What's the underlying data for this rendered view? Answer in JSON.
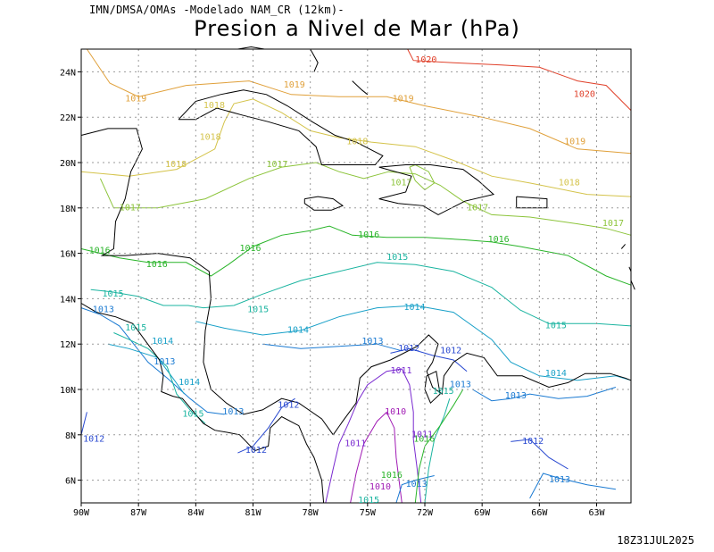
{
  "header": {
    "source_line": "IMN/DMSA/OMAs -Modelado NAM_CR (12km)-",
    "title": "Presion a Nivel de Mar (hPa)"
  },
  "footer": {
    "valid_time": "18Z31JUL2025"
  },
  "axes": {
    "lon_ticks": [
      "90W",
      "87W",
      "84W",
      "81W",
      "78W",
      "75W",
      "72W",
      "69W",
      "66W",
      "63W"
    ],
    "lat_ticks": [
      "24N",
      "22N",
      "20N",
      "18N",
      "16N",
      "14N",
      "12N",
      "10N",
      "8N",
      "6N"
    ],
    "lon_range_deg": [
      -90,
      -61.2
    ],
    "lat_range_deg": [
      5,
      25
    ],
    "grid": true
  },
  "colors": {
    "1020": "#e0402a",
    "1019": "#e0a03a",
    "1018": "#d4c34a",
    "1017": "#8cc43a",
    "1016": "#28b428",
    "1015": "#1ab4a0",
    "1014": "#18a0c8",
    "1013": "#1a7ad2",
    "1012": "#2848d0",
    "1011": "#7a2ad0",
    "1010": "#a01ab4",
    "coast": "#000000",
    "grid": "#9a9a9a"
  },
  "contour_labels": [
    {
      "text": "1020",
      "lon": -72.5,
      "lat": 24.4,
      "level": "1020"
    },
    {
      "text": "1020",
      "lon": -64.2,
      "lat": 22.9,
      "level": "1020"
    },
    {
      "text": "1019",
      "lon": -87.7,
      "lat": 22.7,
      "level": "1019"
    },
    {
      "text": "1019",
      "lon": -79.4,
      "lat": 23.3,
      "level": "1019"
    },
    {
      "text": "1019",
      "lon": -73.7,
      "lat": 22.7,
      "level": "1019"
    },
    {
      "text": "1019",
      "lon": -64.7,
      "lat": 20.8,
      "level": "1019"
    },
    {
      "text": "1018",
      "lon": -83.6,
      "lat": 22.4,
      "level": "1018"
    },
    {
      "text": "1018",
      "lon": -83.8,
      "lat": 21.0,
      "level": "1018"
    },
    {
      "text": "1018",
      "lon": -85.6,
      "lat": 19.8,
      "level": "1018"
    },
    {
      "text": "1018",
      "lon": -76.1,
      "lat": 20.8,
      "level": "1018"
    },
    {
      "text": "1018",
      "lon": -65.0,
      "lat": 19.0,
      "level": "1018"
    },
    {
      "text": "1017",
      "lon": -88.0,
      "lat": 17.9,
      "level": "1017"
    },
    {
      "text": "1017",
      "lon": -80.3,
      "lat": 19.8,
      "level": "1017"
    },
    {
      "text": "1017",
      "lon": -73.8,
      "lat": 19.0,
      "level": "1017"
    },
    {
      "text": "1017",
      "lon": -69.8,
      "lat": 17.9,
      "level": "1017"
    },
    {
      "text": "1017",
      "lon": -62.7,
      "lat": 17.2,
      "level": "1017"
    },
    {
      "text": "1016",
      "lon": -89.6,
      "lat": 16.0,
      "level": "1016"
    },
    {
      "text": "1016",
      "lon": -86.6,
      "lat": 15.4,
      "level": "1016"
    },
    {
      "text": "1016",
      "lon": -81.7,
      "lat": 16.1,
      "level": "1016"
    },
    {
      "text": "1016",
      "lon": -75.5,
      "lat": 16.7,
      "level": "1016"
    },
    {
      "text": "1016",
      "lon": -68.7,
      "lat": 16.5,
      "level": "1016"
    },
    {
      "text": "1016",
      "lon": -72.6,
      "lat": 7.7,
      "level": "1016"
    },
    {
      "text": "1016",
      "lon": -74.3,
      "lat": 6.1,
      "level": "1016"
    },
    {
      "text": "1015",
      "lon": -88.9,
      "lat": 14.1,
      "level": "1015"
    },
    {
      "text": "1015",
      "lon": -87.7,
      "lat": 12.6,
      "level": "1015"
    },
    {
      "text": "1015",
      "lon": -81.3,
      "lat": 13.4,
      "level": "1015"
    },
    {
      "text": "1015",
      "lon": -74.0,
      "lat": 15.7,
      "level": "1015"
    },
    {
      "text": "1015",
      "lon": -65.7,
      "lat": 12.7,
      "level": "1015"
    },
    {
      "text": "1015",
      "lon": -71.6,
      "lat": 9.8,
      "level": "1015"
    },
    {
      "text": "1015",
      "lon": -84.7,
      "lat": 8.8,
      "level": "1015"
    },
    {
      "text": "1015",
      "lon": -75.5,
      "lat": 5.0,
      "level": "1015"
    },
    {
      "text": "1014",
      "lon": -86.3,
      "lat": 12.0,
      "level": "1014"
    },
    {
      "text": "1014",
      "lon": -84.9,
      "lat": 10.2,
      "level": "1014"
    },
    {
      "text": "1014",
      "lon": -79.2,
      "lat": 12.5,
      "level": "1014"
    },
    {
      "text": "1014",
      "lon": -73.1,
      "lat": 13.5,
      "level": "1014"
    },
    {
      "text": "1014",
      "lon": -65.7,
      "lat": 10.6,
      "level": "1014"
    },
    {
      "text": "1013",
      "lon": -89.4,
      "lat": 13.4,
      "level": "1013"
    },
    {
      "text": "1013",
      "lon": -86.2,
      "lat": 11.1,
      "level": "1013"
    },
    {
      "text": "1013",
      "lon": -82.6,
      "lat": 8.9,
      "level": "1013"
    },
    {
      "text": "1013",
      "lon": -75.3,
      "lat": 12.0,
      "level": "1013"
    },
    {
      "text": "1013",
      "lon": -70.7,
      "lat": 10.1,
      "level": "1013"
    },
    {
      "text": "1013",
      "lon": -67.8,
      "lat": 9.6,
      "level": "1013"
    },
    {
      "text": "1013",
      "lon": -73.0,
      "lat": 5.7,
      "level": "1013"
    },
    {
      "text": "1013",
      "lon": -65.5,
      "lat": 5.9,
      "level": "1013"
    },
    {
      "text": "1012",
      "lon": -89.9,
      "lat": 7.7,
      "level": "1012"
    },
    {
      "text": "1012",
      "lon": -81.4,
      "lat": 7.2,
      "level": "1012"
    },
    {
      "text": "1012",
      "lon": -79.7,
      "lat": 9.2,
      "level": "1012"
    },
    {
      "text": "1012",
      "lon": -73.4,
      "lat": 11.7,
      "level": "1012"
    },
    {
      "text": "1012",
      "lon": -71.2,
      "lat": 11.6,
      "level": "1012"
    },
    {
      "text": "1012",
      "lon": -66.9,
      "lat": 7.6,
      "level": "1012"
    },
    {
      "text": "1011",
      "lon": -73.8,
      "lat": 10.7,
      "level": "1011"
    },
    {
      "text": "1011",
      "lon": -76.2,
      "lat": 7.5,
      "level": "1011"
    },
    {
      "text": "1011",
      "lon": -72.7,
      "lat": 7.9,
      "level": "1011"
    },
    {
      "text": "1010",
      "lon": -74.1,
      "lat": 8.9,
      "level": "1010"
    },
    {
      "text": "1010",
      "lon": -74.9,
      "lat": 5.6,
      "level": "1010"
    }
  ]
}
